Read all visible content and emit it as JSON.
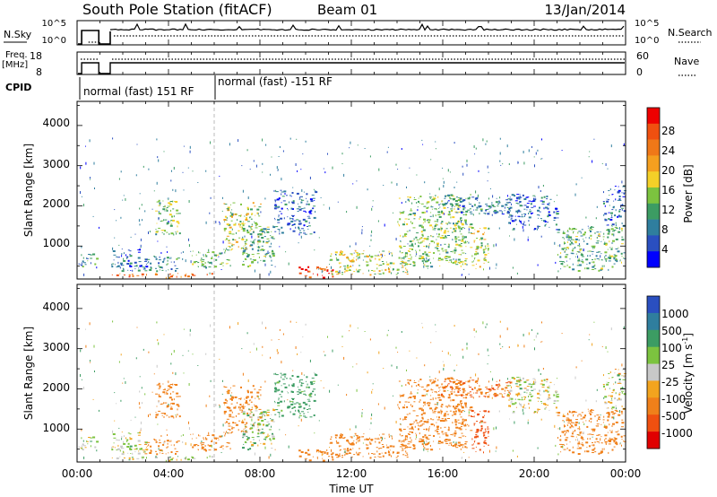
{
  "header": {
    "station": "South Pole Station (fitACF)",
    "beam": "Beam 01",
    "date": "13/Jan/2014"
  },
  "time_axis": {
    "label": "Time UT",
    "range_hours": [
      0,
      24
    ],
    "ticks": [
      "00:00",
      "04:00",
      "08:00",
      "12:00",
      "16:00",
      "20:00",
      "00:00"
    ]
  },
  "panels": {
    "nsky": {
      "label": "N.Sky",
      "right_label": "N.Search",
      "left_ticks": [
        "10^5",
        "10^0"
      ],
      "right_ticks": [
        "10^5",
        "10^0"
      ]
    },
    "freq": {
      "label_line1": "Freq.",
      "label_line2": "[MHz]",
      "right_label": "Nave",
      "left_ticks": [
        "18",
        "8"
      ],
      "right_ticks": [
        "60",
        "0"
      ]
    },
    "cpid": {
      "label": "CPID",
      "mode1": "normal (fast) 151 RF",
      "mode2": "normal (fast) -151 RF"
    },
    "power": {
      "ylabel": "Slant Range [km]",
      "y_ticks": [
        "4000",
        "3000",
        "2000",
        "1000"
      ],
      "colorbar_label": "Power [dB]",
      "colorbar_ticks": [
        "28",
        "24",
        "20",
        "16",
        "12",
        "8",
        "4"
      ]
    },
    "velocity": {
      "ylabel": "Slant Range [km]",
      "y_ticks": [
        "4000",
        "3000",
        "2000",
        "1000"
      ],
      "colorbar_label": "Velocity [m s",
      "colorbar_label_sup": "-1",
      "colorbar_ticks": [
        "1000",
        "500",
        "100",
        "25",
        "-25",
        "-100",
        "-500",
        "-1000"
      ]
    }
  },
  "chart_data": {
    "type": "heatmap",
    "x_unit": "hours UT",
    "y_unit": "km",
    "y_range": [
      180,
      4600
    ],
    "power_colorbar": {
      "colors": [
        "#0000ff",
        "#2a4fc0",
        "#2f7e9e",
        "#3c9c63",
        "#7cc33f",
        "#f4d028",
        "#f59f1f",
        "#f07818",
        "#f05010",
        "#ee0000"
      ],
      "range_db": [
        0,
        32
      ]
    },
    "velocity_colorbar": {
      "colors": [
        "#e00000",
        "#f05010",
        "#f0801a",
        "#f2a41e",
        "#c8c8c8",
        "#7cc33f",
        "#3c9c63",
        "#2f7e9e",
        "#2a4fc0"
      ]
    },
    "mode_change_hour": 6.0,
    "data_gap_hours": [
      0.95,
      1.45
    ],
    "scatter_regions": [
      {
        "t0": 0.0,
        "t1": 0.9,
        "r0": 500,
        "r1": 820,
        "power": 10,
        "velocity": 25
      },
      {
        "t0": 1.5,
        "t1": 5.9,
        "r0": 230,
        "r1": 340,
        "power": 26,
        "velocity": 25
      },
      {
        "t0": 1.5,
        "t1": 3.0,
        "r0": 400,
        "r1": 950,
        "power": 6,
        "velocity": 10
      },
      {
        "t0": 2.9,
        "t1": 4.4,
        "r0": 380,
        "r1": 760,
        "power": 10,
        "velocity": -200
      },
      {
        "t0": 3.4,
        "t1": 4.5,
        "r0": 1300,
        "r1": 2200,
        "power": 14,
        "velocity": -300
      },
      {
        "t0": 5.0,
        "t1": 6.6,
        "r0": 480,
        "r1": 900,
        "power": 14,
        "velocity": -300
      },
      {
        "t0": 6.4,
        "t1": 8.0,
        "r0": 900,
        "r1": 2100,
        "power": 16,
        "velocity": -250
      },
      {
        "t0": 7.2,
        "t1": 8.6,
        "r0": 500,
        "r1": 1600,
        "power": 12,
        "velocity": 50
      },
      {
        "t0": 8.6,
        "t1": 10.4,
        "r0": 1300,
        "r1": 2400,
        "power": 6,
        "velocity": 200
      },
      {
        "t0": 9.5,
        "t1": 11.2,
        "r0": 230,
        "r1": 500,
        "power": 28,
        "velocity": -300
      },
      {
        "t0": 11.0,
        "t1": 14.5,
        "r0": 300,
        "r1": 900,
        "power": 16,
        "velocity": -250
      },
      {
        "t0": 14.0,
        "t1": 17.2,
        "r0": 500,
        "r1": 2300,
        "power": 14,
        "velocity": -350
      },
      {
        "t0": 15.8,
        "t1": 19.0,
        "r0": 1800,
        "r1": 2250,
        "power": 8,
        "velocity": -500
      },
      {
        "t0": 17.2,
        "t1": 18.0,
        "r0": 400,
        "r1": 1500,
        "power": 16,
        "velocity": -700
      },
      {
        "t0": 18.8,
        "t1": 21.0,
        "r0": 1400,
        "r1": 2300,
        "power": 6,
        "velocity": 0
      },
      {
        "t0": 21.0,
        "t1": 24.0,
        "r0": 400,
        "r1": 1500,
        "power": 12,
        "velocity": -350
      },
      {
        "t0": 23.0,
        "t1": 24.0,
        "r0": 1500,
        "r1": 2500,
        "power": 6,
        "velocity": 0
      }
    ]
  }
}
